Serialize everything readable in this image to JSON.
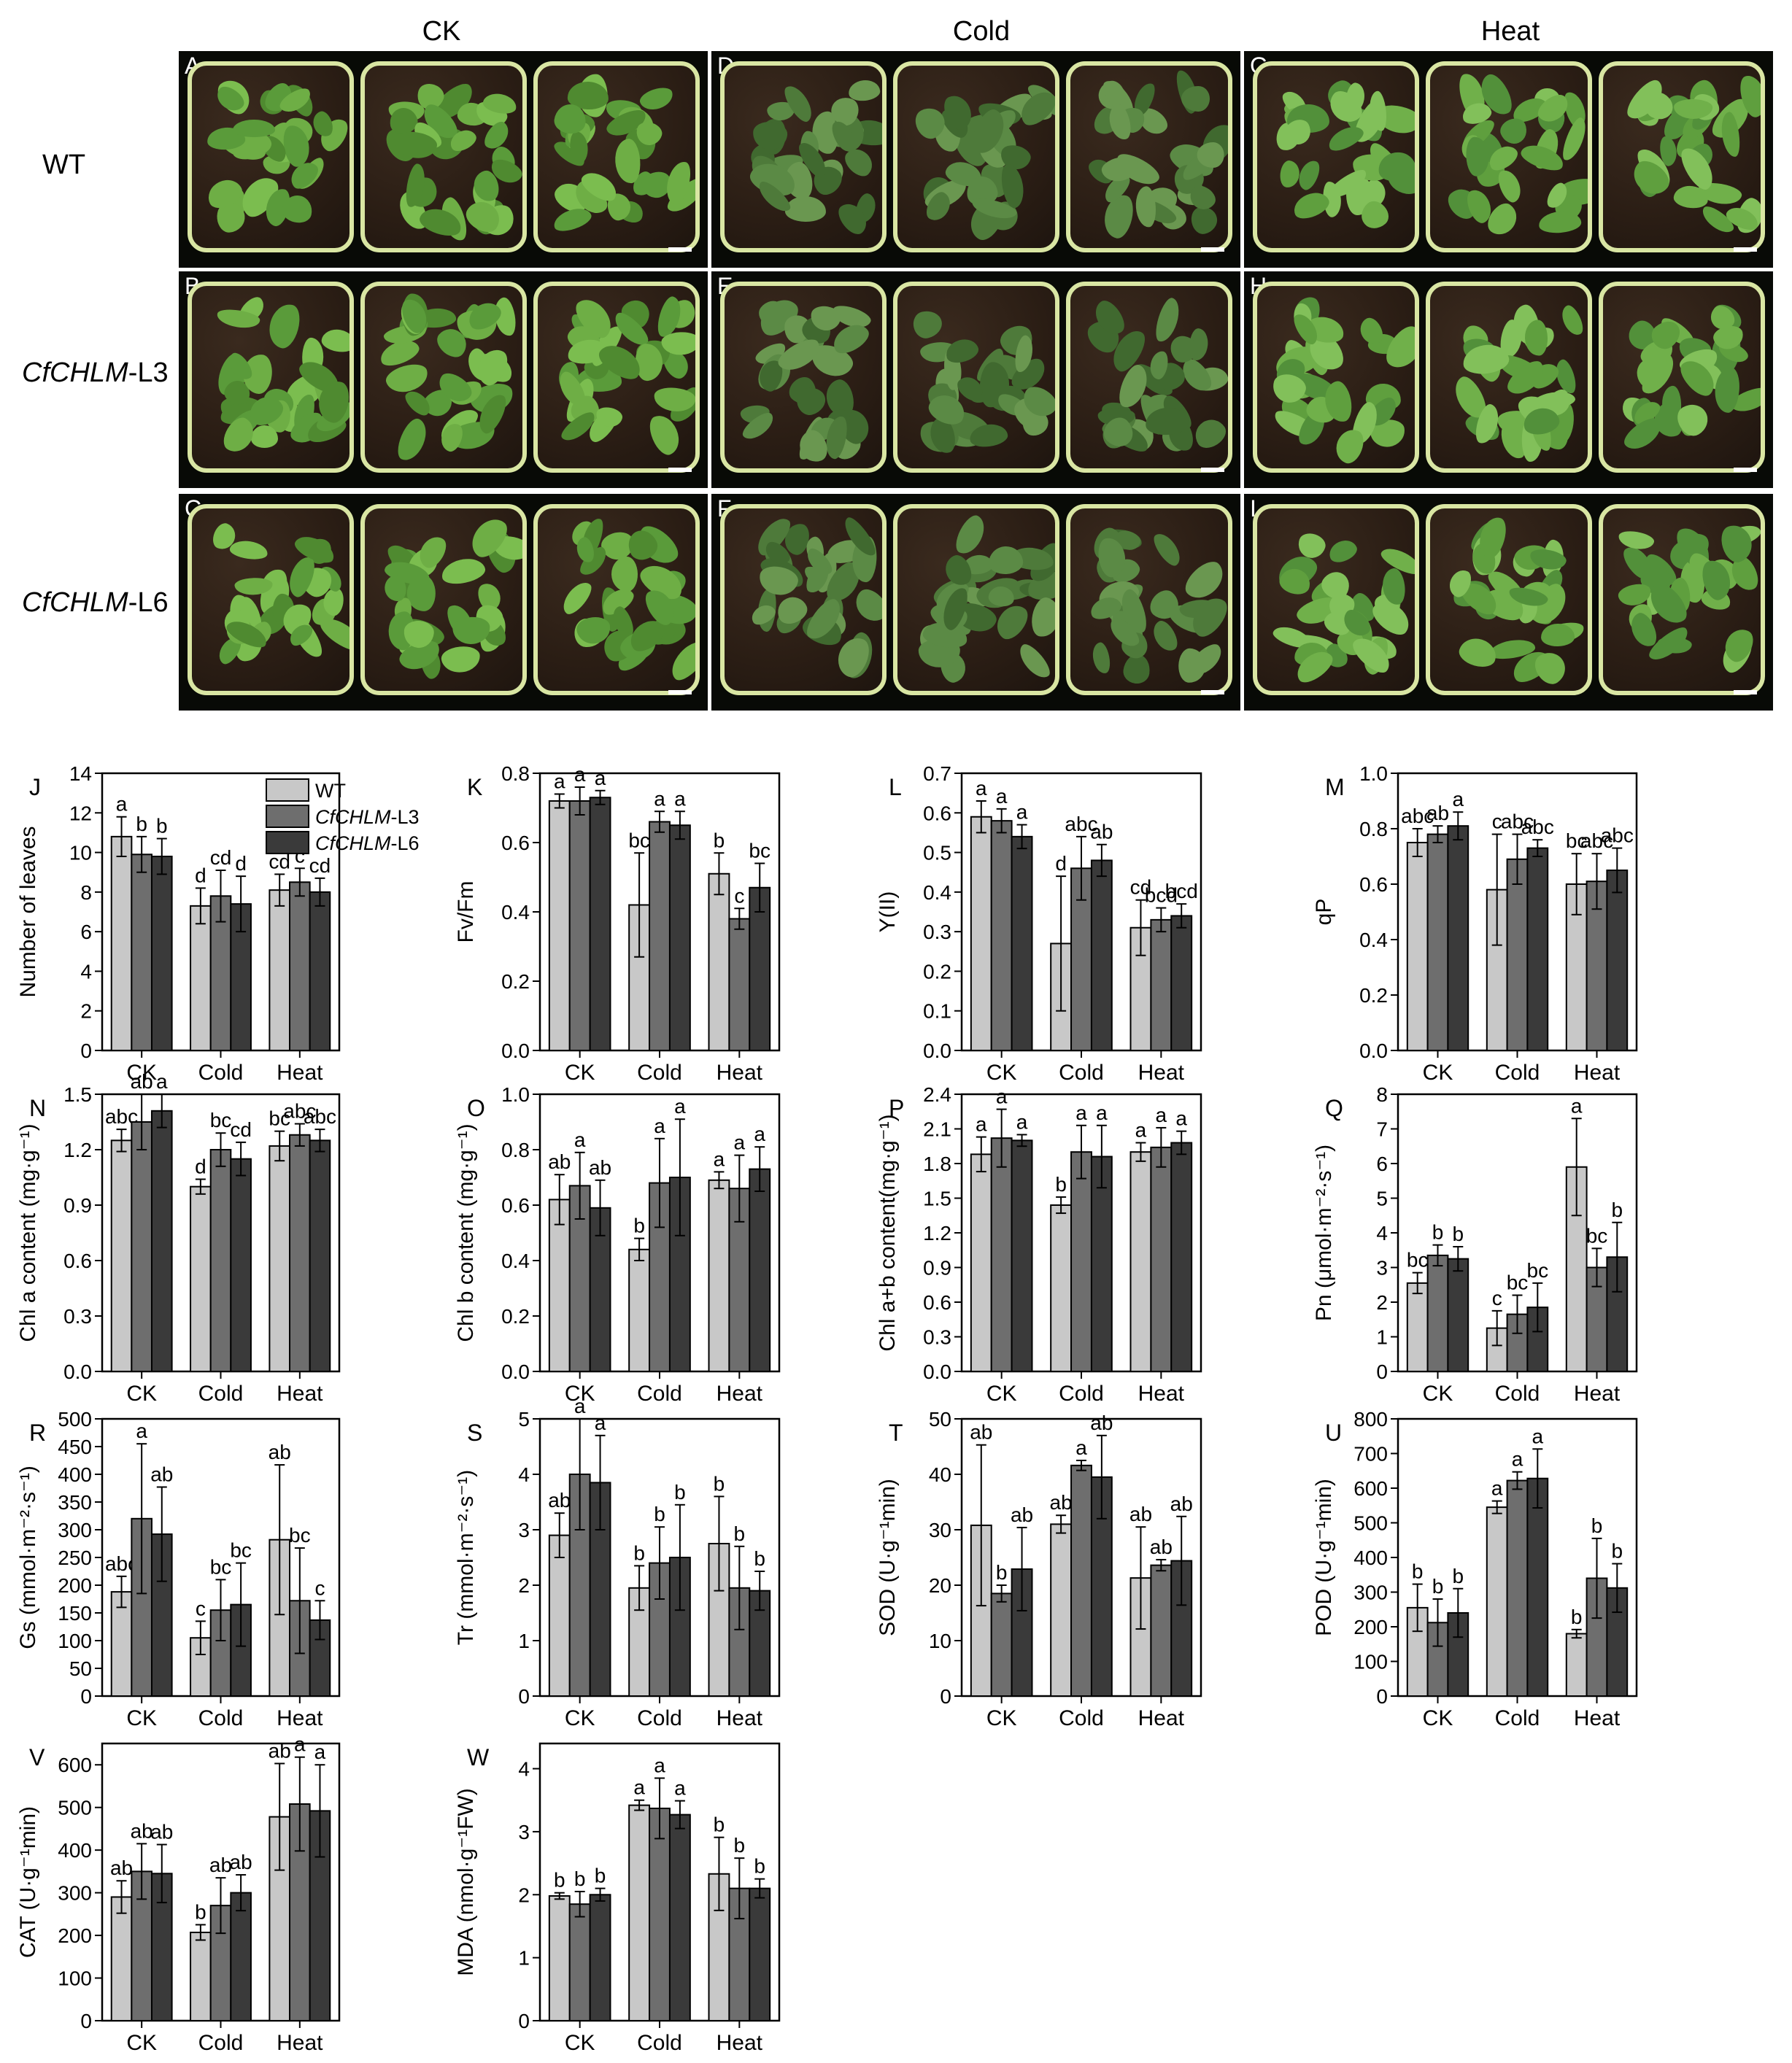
{
  "photos": {
    "columns": [
      "CK",
      "Cold",
      "Heat"
    ],
    "rows": [
      {
        "label": "WT",
        "italic": "",
        "suffix": ""
      },
      {
        "label": "",
        "italic": "CfCHLM",
        "suffix": "-L3"
      },
      {
        "label": "",
        "italic": "CfCHLM",
        "suffix": "-L6"
      }
    ],
    "panel_letters": [
      [
        "A",
        "D",
        "G"
      ],
      [
        "B",
        "E",
        "H"
      ],
      [
        "C",
        "F",
        "I"
      ]
    ]
  },
  "legend": {
    "items": [
      {
        "label": "WT",
        "italic": "",
        "suffix": "",
        "color": "#c8c8c8"
      },
      {
        "label": "",
        "italic": "CfCHLM",
        "suffix": "-L3",
        "color": "#6e6e6e"
      },
      {
        "label": "",
        "italic": "CfCHLM",
        "suffix": "-L6",
        "color": "#3a3a3a"
      }
    ]
  },
  "colors": {
    "WT": "#c8c8c8",
    "L3": "#6e6e6e",
    "L6": "#3a3a3a"
  },
  "chart_data": [
    {
      "id": "J",
      "type": "bar",
      "categories": [
        "CK",
        "Cold",
        "Heat"
      ],
      "ylabel": "Number of leaves",
      "ylim": [
        0,
        14
      ],
      "yticks": [
        0,
        2,
        4,
        6,
        8,
        10,
        12,
        14
      ],
      "series": [
        {
          "name": "WT",
          "values": [
            10.8,
            7.3,
            8.1
          ],
          "err": [
            1.0,
            0.9,
            0.8
          ]
        },
        {
          "name": "CfCHLM-L3",
          "values": [
            9.9,
            7.8,
            8.5
          ],
          "err": [
            0.9,
            1.3,
            0.7
          ]
        },
        {
          "name": "CfCHLM-L6",
          "values": [
            9.8,
            7.4,
            8.0
          ],
          "err": [
            0.9,
            1.4,
            0.7
          ]
        }
      ],
      "letters": [
        [
          "a",
          "d",
          "cd"
        ],
        [
          "b",
          "cd",
          "c"
        ],
        [
          "b",
          "d",
          "cd"
        ]
      ]
    },
    {
      "id": "K",
      "type": "bar",
      "categories": [
        "CK",
        "Cold",
        "Heat"
      ],
      "ylabel": "Fv/Fm",
      "ylim": [
        0,
        0.8
      ],
      "yticks": [
        0.0,
        0.2,
        0.4,
        0.6,
        0.8
      ],
      "series": [
        {
          "name": "WT",
          "values": [
            0.72,
            0.42,
            0.51
          ],
          "err": [
            0.02,
            0.15,
            0.06
          ]
        },
        {
          "name": "CfCHLM-L3",
          "values": [
            0.72,
            0.66,
            0.38
          ],
          "err": [
            0.04,
            0.03,
            0.03
          ]
        },
        {
          "name": "CfCHLM-L6",
          "values": [
            0.73,
            0.65,
            0.47
          ],
          "err": [
            0.02,
            0.04,
            0.07
          ]
        }
      ],
      "letters": [
        [
          "a",
          "bc",
          "b"
        ],
        [
          "a",
          "a",
          "c"
        ],
        [
          "a",
          "a",
          "bc"
        ]
      ]
    },
    {
      "id": "L",
      "type": "bar",
      "categories": [
        "CK",
        "Cold",
        "Heat"
      ],
      "ylabel": "Y(II)",
      "ylim": [
        0,
        0.7
      ],
      "yticks": [
        0.0,
        0.1,
        0.2,
        0.3,
        0.4,
        0.5,
        0.6,
        0.7
      ],
      "series": [
        {
          "name": "WT",
          "values": [
            0.59,
            0.27,
            0.31
          ],
          "err": [
            0.04,
            0.17,
            0.07
          ]
        },
        {
          "name": "CfCHLM-L3",
          "values": [
            0.58,
            0.46,
            0.33
          ],
          "err": [
            0.03,
            0.08,
            0.03
          ]
        },
        {
          "name": "CfCHLM-L6",
          "values": [
            0.54,
            0.48,
            0.34
          ],
          "err": [
            0.03,
            0.04,
            0.03
          ]
        }
      ],
      "letters": [
        [
          "a",
          "d",
          "cd"
        ],
        [
          "a",
          "abc",
          "bcd"
        ],
        [
          "a",
          "ab",
          "bcd"
        ]
      ]
    },
    {
      "id": "M",
      "type": "bar",
      "categories": [
        "CK",
        "Cold",
        "Heat"
      ],
      "ylabel": "qP",
      "ylim": [
        0,
        1.0
      ],
      "yticks": [
        0.0,
        0.2,
        0.4,
        0.6,
        0.8,
        1.0
      ],
      "series": [
        {
          "name": "WT",
          "values": [
            0.75,
            0.58,
            0.6
          ],
          "err": [
            0.05,
            0.2,
            0.11
          ]
        },
        {
          "name": "CfCHLM-L3",
          "values": [
            0.78,
            0.69,
            0.61
          ],
          "err": [
            0.03,
            0.09,
            0.1
          ]
        },
        {
          "name": "CfCHLM-L6",
          "values": [
            0.81,
            0.73,
            0.65
          ],
          "err": [
            0.05,
            0.03,
            0.08
          ]
        }
      ],
      "letters": [
        [
          "abc",
          "c",
          "bc"
        ],
        [
          "ab",
          "abc",
          "abc"
        ],
        [
          "a",
          "abc",
          "abc"
        ]
      ]
    },
    {
      "id": "N",
      "type": "bar",
      "categories": [
        "CK",
        "Cold",
        "Heat"
      ],
      "ylabel": "Chl a content (mg·g⁻¹)",
      "ylim": [
        0,
        1.5
      ],
      "yticks": [
        0.0,
        0.3,
        0.6,
        0.9,
        1.2,
        1.5
      ],
      "series": [
        {
          "name": "WT",
          "values": [
            1.25,
            1.0,
            1.22
          ],
          "err": [
            0.06,
            0.04,
            0.08
          ]
        },
        {
          "name": "CfCHLM-L3",
          "values": [
            1.35,
            1.2,
            1.28
          ],
          "err": [
            0.15,
            0.09,
            0.06
          ]
        },
        {
          "name": "CfCHLM-L6",
          "values": [
            1.41,
            1.15,
            1.25
          ],
          "err": [
            0.09,
            0.09,
            0.06
          ]
        }
      ],
      "letters": [
        [
          "abc",
          "d",
          "bc"
        ],
        [
          "ab",
          "bc",
          "abc"
        ],
        [
          "a",
          "cd",
          "abc"
        ]
      ]
    },
    {
      "id": "O",
      "type": "bar",
      "categories": [
        "CK",
        "Cold",
        "Heat"
      ],
      "ylabel": "Chl b content (mg·g⁻¹)",
      "ylim": [
        0,
        1.0
      ],
      "yticks": [
        0.0,
        0.2,
        0.4,
        0.6,
        0.8,
        1.0
      ],
      "series": [
        {
          "name": "WT",
          "values": [
            0.62,
            0.44,
            0.69
          ],
          "err": [
            0.09,
            0.04,
            0.03
          ]
        },
        {
          "name": "CfCHLM-L3",
          "values": [
            0.67,
            0.68,
            0.66
          ],
          "err": [
            0.12,
            0.16,
            0.12
          ]
        },
        {
          "name": "CfCHLM-L6",
          "values": [
            0.59,
            0.7,
            0.73
          ],
          "err": [
            0.1,
            0.21,
            0.08
          ]
        }
      ],
      "letters": [
        [
          "ab",
          "b",
          "a"
        ],
        [
          "a",
          "a",
          "a"
        ],
        [
          "ab",
          "a",
          "a"
        ]
      ]
    },
    {
      "id": "P",
      "type": "bar",
      "categories": [
        "CK",
        "Cold",
        "Heat"
      ],
      "ylabel": "Chl a+b content(mg·g⁻¹)",
      "ylim": [
        0,
        2.4
      ],
      "yticks": [
        0.0,
        0.3,
        0.6,
        0.9,
        1.2,
        1.5,
        1.8,
        2.1,
        2.4
      ],
      "series": [
        {
          "name": "WT",
          "values": [
            1.88,
            1.44,
            1.9
          ],
          "err": [
            0.15,
            0.07,
            0.08
          ]
        },
        {
          "name": "CfCHLM-L3",
          "values": [
            2.02,
            1.9,
            1.94
          ],
          "err": [
            0.25,
            0.23,
            0.17
          ]
        },
        {
          "name": "CfCHLM-L6",
          "values": [
            2.0,
            1.86,
            1.98
          ],
          "err": [
            0.05,
            0.27,
            0.1
          ]
        }
      ],
      "letters": [
        [
          "a",
          "b",
          "a"
        ],
        [
          "a",
          "a",
          "a"
        ],
        [
          "a",
          "a",
          "a"
        ]
      ]
    },
    {
      "id": "Q",
      "type": "bar",
      "categories": [
        "CK",
        "Cold",
        "Heat"
      ],
      "ylabel": "Pn (μmol·m⁻²·s⁻¹)",
      "ylim": [
        0,
        8
      ],
      "yticks": [
        0,
        1,
        2,
        3,
        4,
        5,
        6,
        7,
        8
      ],
      "series": [
        {
          "name": "WT",
          "values": [
            2.55,
            1.25,
            5.9
          ],
          "err": [
            0.3,
            0.5,
            1.4
          ]
        },
        {
          "name": "CfCHLM-L3",
          "values": [
            3.35,
            1.65,
            3.0
          ],
          "err": [
            0.3,
            0.55,
            0.55
          ]
        },
        {
          "name": "CfCHLM-L6",
          "values": [
            3.25,
            1.85,
            3.3
          ],
          "err": [
            0.35,
            0.7,
            1.0
          ]
        }
      ],
      "letters": [
        [
          "bc",
          "c",
          "a"
        ],
        [
          "b",
          "bc",
          "bc"
        ],
        [
          "b",
          "bc",
          "b"
        ]
      ]
    },
    {
      "id": "R",
      "type": "bar",
      "categories": [
        "CK",
        "Cold",
        "Heat"
      ],
      "ylabel": "Gs (mmol·m⁻²·s⁻¹)",
      "ylim": [
        0,
        500
      ],
      "yticks": [
        0,
        50,
        100,
        150,
        200,
        250,
        300,
        350,
        400,
        450,
        500
      ],
      "series": [
        {
          "name": "WT",
          "values": [
            188,
            105,
            282
          ],
          "err": [
            28,
            30,
            135
          ]
        },
        {
          "name": "CfCHLM-L3",
          "values": [
            320,
            155,
            172
          ],
          "err": [
            135,
            55,
            95
          ]
        },
        {
          "name": "CfCHLM-L6",
          "values": [
            292,
            165,
            137
          ],
          "err": [
            85,
            75,
            35
          ]
        }
      ],
      "letters": [
        [
          "abc",
          "c",
          "ab"
        ],
        [
          "a",
          "bc",
          "bc"
        ],
        [
          "ab",
          "bc",
          "c"
        ]
      ]
    },
    {
      "id": "S",
      "type": "bar",
      "categories": [
        "CK",
        "Cold",
        "Heat"
      ],
      "ylabel": "Tr (mmol·m⁻²·s⁻¹)",
      "ylim": [
        0,
        5
      ],
      "yticks": [
        0,
        1,
        2,
        3,
        4,
        5
      ],
      "series": [
        {
          "name": "WT",
          "values": [
            2.9,
            1.95,
            2.75
          ],
          "err": [
            0.4,
            0.4,
            0.85
          ]
        },
        {
          "name": "CfCHLM-L3",
          "values": [
            4.0,
            2.4,
            1.95
          ],
          "err": [
            1.0,
            0.65,
            0.75
          ]
        },
        {
          "name": "CfCHLM-L6",
          "values": [
            3.85,
            2.5,
            1.9
          ],
          "err": [
            0.85,
            0.95,
            0.35
          ]
        }
      ],
      "letters": [
        [
          "ab",
          "b",
          "b"
        ],
        [
          "a",
          "b",
          "b"
        ],
        [
          "a",
          "b",
          "b"
        ]
      ]
    },
    {
      "id": "T",
      "type": "bar",
      "categories": [
        "CK",
        "Cold",
        "Heat"
      ],
      "ylabel": "SOD (U·g⁻¹min)",
      "ylim": [
        0,
        50
      ],
      "yticks": [
        0,
        10,
        20,
        30,
        40,
        50
      ],
      "series": [
        {
          "name": "WT",
          "values": [
            30.8,
            31.0,
            21.3
          ],
          "err": [
            14.5,
            1.6,
            9.2
          ]
        },
        {
          "name": "CfCHLM-L3",
          "values": [
            18.5,
            41.6,
            23.6
          ],
          "err": [
            1.5,
            0.9,
            1.0
          ]
        },
        {
          "name": "CfCHLM-L6",
          "values": [
            22.9,
            39.5,
            24.4
          ],
          "err": [
            7.5,
            7.5,
            8.0
          ]
        }
      ],
      "letters": [
        [
          "ab",
          "ab",
          "ab"
        ],
        [
          "b",
          "a",
          "ab"
        ],
        [
          "ab",
          "ab",
          "ab"
        ]
      ]
    },
    {
      "id": "U",
      "type": "bar",
      "categories": [
        "CK",
        "Cold",
        "Heat"
      ],
      "ylabel": "POD (U·g⁻¹min)",
      "ylim": [
        0,
        800
      ],
      "yticks": [
        0,
        100,
        200,
        300,
        400,
        500,
        600,
        700,
        800
      ],
      "series": [
        {
          "name": "WT",
          "values": [
            255,
            545,
            180
          ],
          "err": [
            68,
            18,
            12
          ]
        },
        {
          "name": "CfCHLM-L3",
          "values": [
            212,
            622,
            340
          ],
          "err": [
            68,
            25,
            115
          ]
        },
        {
          "name": "CfCHLM-L6",
          "values": [
            240,
            628,
            312
          ],
          "err": [
            70,
            85,
            70
          ]
        }
      ],
      "letters": [
        [
          "b",
          "a",
          "b"
        ],
        [
          "b",
          "a",
          "b"
        ],
        [
          "b",
          "a",
          "b"
        ]
      ]
    },
    {
      "id": "V",
      "type": "bar",
      "categories": [
        "CK",
        "Cold",
        "Heat"
      ],
      "ylabel": "CAT (U·g⁻¹min)",
      "ylim": [
        0,
        650
      ],
      "yticks": [
        0,
        100,
        200,
        300,
        400,
        500,
        600
      ],
      "series": [
        {
          "name": "WT",
          "values": [
            290,
            207,
            478
          ],
          "err": [
            38,
            18,
            125
          ]
        },
        {
          "name": "CfCHLM-L3",
          "values": [
            350,
            270,
            508
          ],
          "err": [
            65,
            65,
            110
          ]
        },
        {
          "name": "CfCHLM-L6",
          "values": [
            345,
            300,
            492
          ],
          "err": [
            68,
            42,
            108
          ]
        }
      ],
      "letters": [
        [
          "ab",
          "b",
          "ab"
        ],
        [
          "ab",
          "ab",
          "a"
        ],
        [
          "ab",
          "ab",
          "a"
        ]
      ]
    },
    {
      "id": "W",
      "type": "bar",
      "categories": [
        "CK",
        "Cold",
        "Heat"
      ],
      "ylabel": "MDA (nmol·g⁻¹FW)",
      "ylim": [
        0,
        4.4
      ],
      "yticks": [
        0,
        1,
        2,
        3,
        4
      ],
      "series": [
        {
          "name": "WT",
          "values": [
            1.98,
            3.42,
            2.33
          ],
          "err": [
            0.05,
            0.08,
            0.58
          ]
        },
        {
          "name": "CfCHLM-L3",
          "values": [
            1.85,
            3.37,
            2.1
          ],
          "err": [
            0.2,
            0.48,
            0.48
          ]
        },
        {
          "name": "CfCHLM-L6",
          "values": [
            2.0,
            3.27,
            2.1
          ],
          "err": [
            0.1,
            0.22,
            0.15
          ]
        }
      ],
      "letters": [
        [
          "b",
          "a",
          "b"
        ],
        [
          "b",
          "a",
          "b"
        ],
        [
          "b",
          "a",
          "b"
        ]
      ]
    }
  ]
}
